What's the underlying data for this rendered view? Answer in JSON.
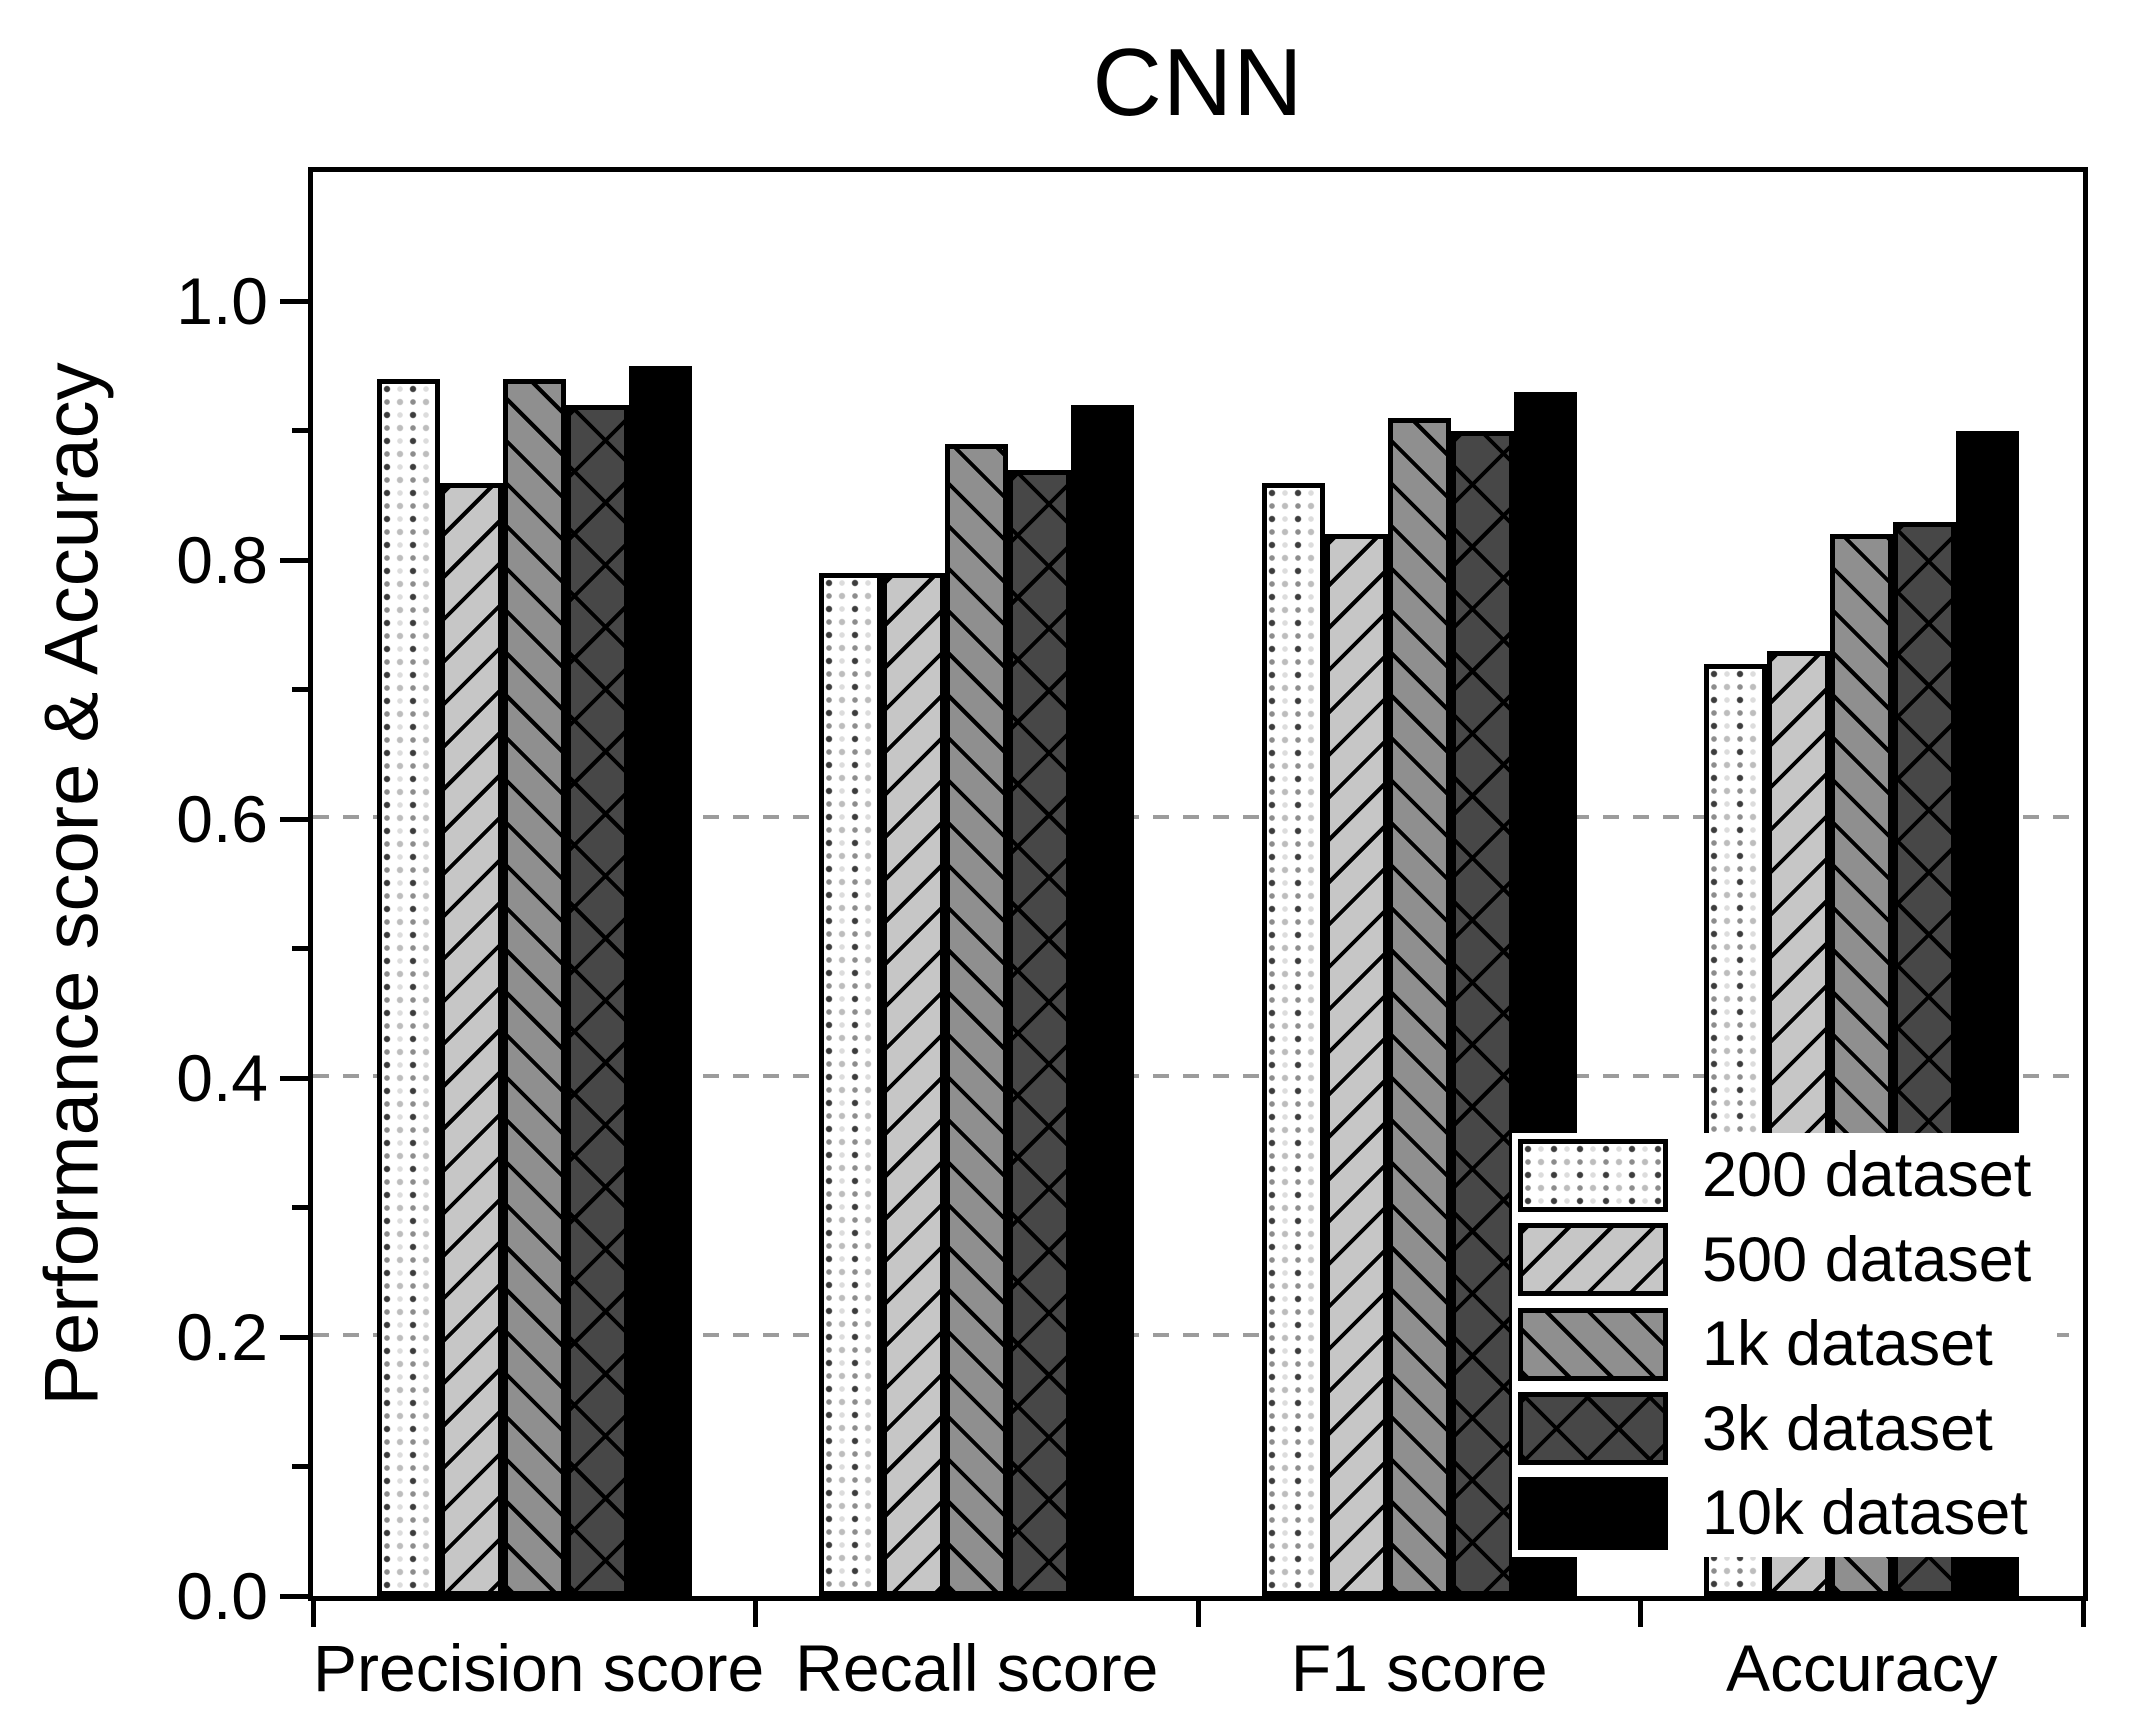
{
  "title": "CNN",
  "chart_data": {
    "type": "bar",
    "title": "CNN",
    "xlabel": "",
    "ylabel": "Performance score & Accuracy",
    "categories": [
      "Precision score",
      "Recall score",
      "F1 score",
      "Accuracy"
    ],
    "series": [
      {
        "name": "200 dataset",
        "pattern": "dots",
        "values": [
          0.94,
          0.79,
          0.86,
          0.72
        ]
      },
      {
        "name": "500 dataset",
        "pattern": "diagonal-up",
        "values": [
          0.86,
          0.79,
          0.82,
          0.73
        ]
      },
      {
        "name": "1k dataset",
        "pattern": "diagonal-down",
        "values": [
          0.94,
          0.89,
          0.91,
          0.82
        ]
      },
      {
        "name": "3k dataset",
        "pattern": "crosshatch",
        "values": [
          0.92,
          0.87,
          0.9,
          0.83
        ]
      },
      {
        "name": "10k dataset",
        "pattern": "solid-black",
        "values": [
          0.95,
          0.92,
          0.93,
          0.9
        ]
      }
    ],
    "ylim": [
      0,
      1.1
    ],
    "y_major_tick_labels": [
      "0.0",
      "0.2",
      "0.4",
      "0.6",
      "0.8",
      "1.0"
    ],
    "y_major_tick_values": [
      0.0,
      0.2,
      0.4,
      0.6,
      0.8,
      1.0
    ],
    "y_minor_tick_values": [
      0.1,
      0.3,
      0.5,
      0.7,
      0.9
    ],
    "gridline_values": [
      0.2,
      0.4,
      0.6
    ],
    "grid_style": "dashed",
    "legend_position": "lower-right-inside",
    "colors": {
      "background": "#ffffff",
      "text": "#000000",
      "bar_outline": "#000000",
      "fill_200": "#ffffff",
      "fill_500": "#c6c6c6",
      "fill_1k": "#8f8f8f",
      "fill_3k": "#474747",
      "fill_10k": "#000000",
      "gridline": "#9c9c9c"
    }
  }
}
